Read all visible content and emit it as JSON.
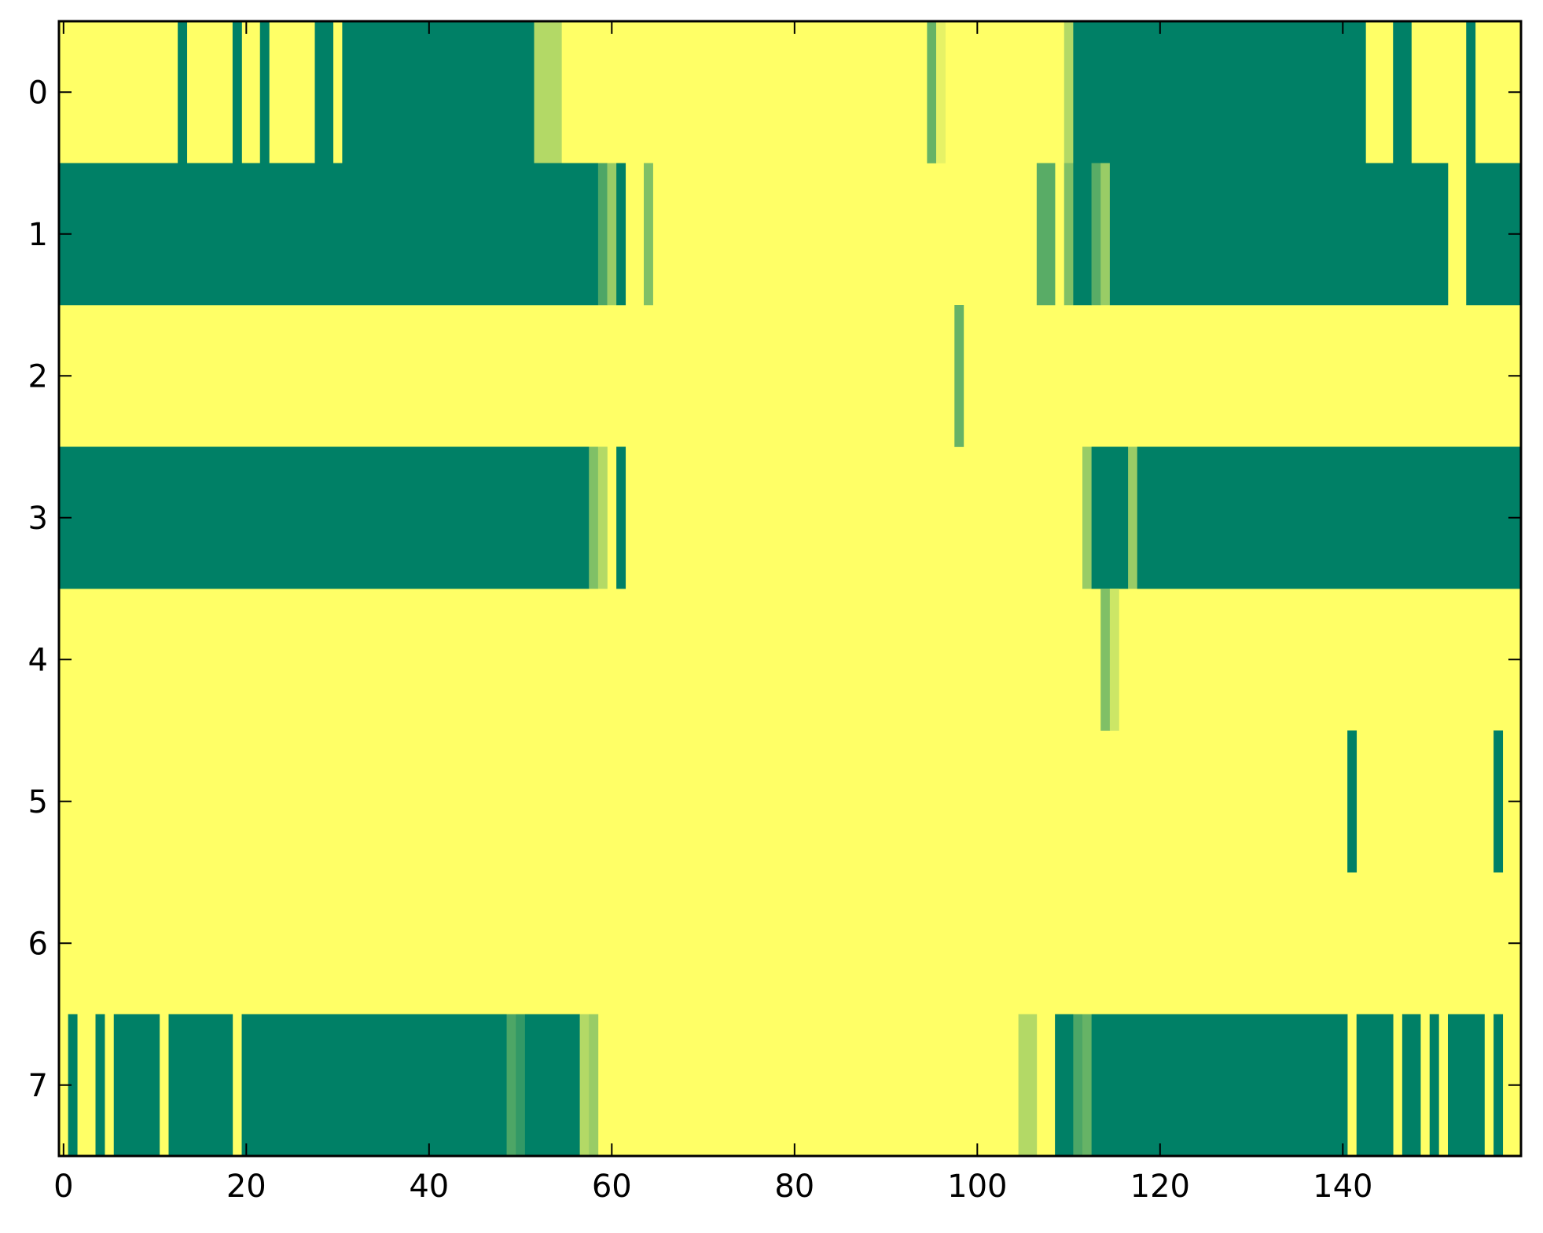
{
  "chart_data": {
    "type": "heatmap",
    "title": "",
    "xlabel": "",
    "ylabel": "",
    "x_range": [
      -0.5,
      159.5
    ],
    "y_range": [
      -0.5,
      7.5
    ],
    "x_ticks": [
      0,
      20,
      40,
      60,
      80,
      100,
      120,
      140
    ],
    "x_tick_labels": [
      "0",
      "20",
      "40",
      "60",
      "80",
      "100",
      "120",
      "140"
    ],
    "y_ticks": [
      0,
      1,
      2,
      3,
      4,
      5,
      6,
      7
    ],
    "y_tick_labels": [
      "0",
      "1",
      "2",
      "3",
      "4",
      "5",
      "6",
      "7"
    ],
    "colormap": "summer",
    "colormap_stops": [
      "#008066",
      "#ffff66"
    ],
    "value_range": [
      0,
      1
    ],
    "background_value": 1,
    "columns": 160,
    "rows_count": 8,
    "rows": [
      {
        "row": 0,
        "runs": [
          [
            13,
            13,
            0
          ],
          [
            19,
            19,
            0
          ],
          [
            22,
            22,
            0
          ],
          [
            28,
            29,
            0
          ],
          [
            31,
            51,
            0
          ],
          [
            52,
            54,
            0.7
          ],
          [
            95,
            95,
            0.4
          ],
          [
            96,
            96,
            0.9
          ],
          [
            110,
            110,
            0.7
          ],
          [
            111,
            142,
            0
          ],
          [
            146,
            147,
            0
          ],
          [
            154,
            154,
            0
          ]
        ]
      },
      {
        "row": 1,
        "runs": [
          [
            0,
            58,
            0
          ],
          [
            59,
            59,
            0.3
          ],
          [
            60,
            60,
            0.6
          ],
          [
            61,
            61,
            0
          ],
          [
            64,
            64,
            0.5
          ],
          [
            107,
            108,
            0.35
          ],
          [
            110,
            110,
            0.5
          ],
          [
            111,
            112,
            0
          ],
          [
            113,
            113,
            0.35
          ],
          [
            114,
            114,
            0.6
          ],
          [
            115,
            151,
            0
          ],
          [
            154,
            159,
            0
          ]
        ]
      },
      {
        "row": 2,
        "runs": [
          [
            98,
            98,
            0.4
          ]
        ]
      },
      {
        "row": 3,
        "runs": [
          [
            0,
            57,
            0
          ],
          [
            58,
            58,
            0.5
          ],
          [
            59,
            59,
            0.7
          ],
          [
            61,
            61,
            0
          ],
          [
            112,
            112,
            0.6
          ],
          [
            113,
            116,
            0
          ],
          [
            117,
            117,
            0.6
          ],
          [
            118,
            159,
            0
          ]
        ]
      },
      {
        "row": 4,
        "runs": [
          [
            114,
            114,
            0.5
          ],
          [
            115,
            115,
            0.8
          ]
        ]
      },
      {
        "row": 5,
        "runs": [
          [
            141,
            141,
            0
          ],
          [
            157,
            157,
            0
          ]
        ]
      },
      {
        "row": 6,
        "runs": []
      },
      {
        "row": 7,
        "runs": [
          [
            1,
            1,
            0
          ],
          [
            4,
            4,
            0
          ],
          [
            6,
            10,
            0
          ],
          [
            12,
            18,
            0
          ],
          [
            20,
            48,
            0
          ],
          [
            49,
            49,
            0.3
          ],
          [
            50,
            50,
            0.2
          ],
          [
            51,
            56,
            0
          ],
          [
            57,
            57,
            0.7
          ],
          [
            58,
            58,
            0.6
          ],
          [
            105,
            106,
            0.7
          ],
          [
            109,
            110,
            0
          ],
          [
            111,
            111,
            0.3
          ],
          [
            112,
            112,
            0.4
          ],
          [
            113,
            140,
            0
          ],
          [
            142,
            145,
            0
          ],
          [
            147,
            148,
            0
          ],
          [
            150,
            150,
            0
          ],
          [
            152,
            155,
            0
          ],
          [
            157,
            157,
            0
          ]
        ]
      }
    ]
  }
}
